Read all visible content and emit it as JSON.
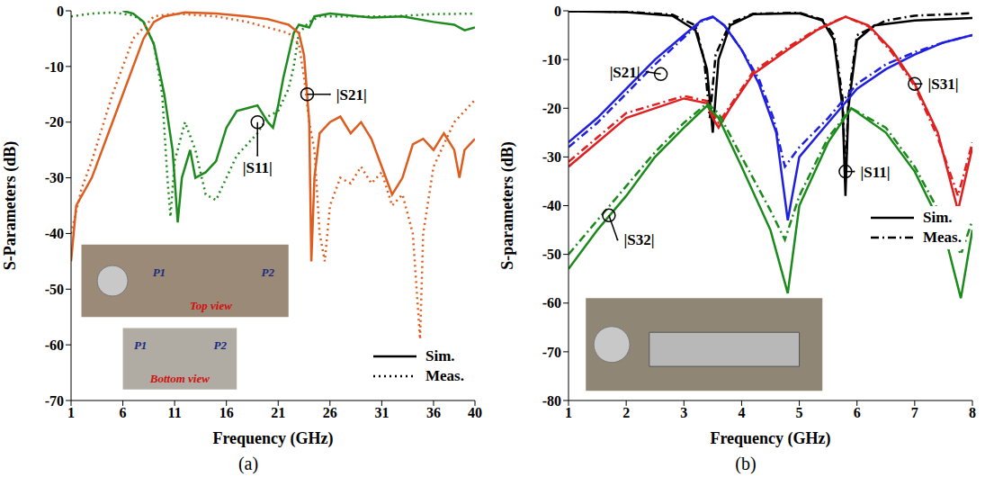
{
  "chart_data": [
    {
      "type": "line",
      "caption": "(a)",
      "x_label": "Frequency (GHz)",
      "y_label": "S-Parameters (dB)",
      "xlim": [
        1,
        40
      ],
      "xticks": [
        1,
        6,
        11,
        16,
        21,
        26,
        31,
        36,
        40
      ],
      "ylim": [
        -70,
        0
      ],
      "yticks": [
        -70,
        -60,
        -50,
        -40,
        -30,
        -20,
        -10,
        0
      ],
      "legend": "lower right",
      "style_legend": [
        {
          "label": "Sim.",
          "line_style": "solid"
        },
        {
          "label": "Meas.",
          "line_style": "dotted"
        }
      ],
      "photo_labels": {
        "top": [
          "P1",
          "Top view",
          "P2"
        ],
        "bottom": [
          "P1",
          "Bottom view",
          "P2"
        ]
      },
      "series": [
        {
          "name": "|S11|",
          "color": "#1e8a1e",
          "line_style": "solid",
          "x": [
            6,
            7,
            8,
            9,
            10,
            10.8,
            11.3,
            11.7,
            12.5,
            13,
            14,
            15,
            16,
            17,
            18,
            19,
            20,
            20.5,
            21,
            21.5,
            22,
            22.5,
            23,
            24,
            24.5,
            26,
            30,
            33,
            36,
            38,
            39,
            40
          ],
          "values": [
            0,
            -0.5,
            -2,
            -6,
            -15,
            -25,
            -38,
            -30,
            -25,
            -30,
            -29,
            -27,
            -21,
            -18,
            -17.5,
            -17,
            -20,
            -21,
            -17,
            -12,
            -8,
            -4,
            -2.5,
            -3,
            -1,
            -0.5,
            -1.2,
            -1,
            -2,
            -2.5,
            -3.5,
            -3
          ]
        },
        {
          "name": "|S11|",
          "color": "#1e8a1e",
          "line_style": "dotted",
          "x": [
            1,
            3,
            5,
            7,
            8,
            9,
            9.8,
            10.3,
            10.6,
            11,
            12,
            13,
            14,
            15,
            16,
            17,
            18,
            19,
            20,
            21,
            22,
            22.5,
            23,
            23.5,
            24,
            25,
            28,
            32,
            36,
            40
          ],
          "values": [
            -1,
            -0.5,
            -0.3,
            -0.8,
            -2,
            -6,
            -15,
            -30,
            -37,
            -27,
            -20,
            -25,
            -33,
            -34,
            -30,
            -26,
            -24,
            -22,
            -19,
            -18,
            -14,
            -10,
            -4,
            -3,
            -2,
            -1,
            -1,
            -1,
            -0.6,
            -0.5
          ]
        },
        {
          "name": "|S21|",
          "color": "#dd5c1e",
          "line_style": "solid",
          "x": [
            1,
            1.5,
            3,
            5,
            7,
            8,
            9,
            10,
            12,
            15,
            18,
            20,
            21,
            22,
            23,
            23.5,
            24,
            24.2,
            24.5,
            25,
            26,
            27,
            28,
            29,
            30,
            31,
            32,
            33,
            34,
            35,
            36,
            37,
            38,
            38.5,
            39,
            40
          ],
          "values": [
            -45,
            -35,
            -30,
            -20,
            -10,
            -5,
            -2,
            -1,
            -0.3,
            -0.5,
            -1,
            -1.5,
            -2,
            -2.5,
            -4,
            -8,
            -20,
            -45,
            -30,
            -22,
            -20,
            -19,
            -22,
            -20,
            -23,
            -28,
            -33,
            -30,
            -24,
            -23,
            -25,
            -22,
            -25,
            -30,
            -25,
            -23
          ]
        },
        {
          "name": "|S21|",
          "color": "#dd5c1e",
          "line_style": "dotted",
          "x": [
            1,
            2,
            3,
            5,
            7,
            9,
            11,
            15,
            18,
            20,
            22,
            23,
            23.5,
            24,
            24.5,
            25,
            25.5,
            26,
            27,
            28,
            29,
            30,
            31,
            32,
            33,
            34,
            34.7,
            35,
            36,
            37,
            38,
            39,
            40
          ],
          "values": [
            -40,
            -32,
            -27,
            -15,
            -5,
            -1,
            -0.5,
            -1,
            -2,
            -3,
            -4,
            -6,
            -12,
            -20,
            -25,
            -40,
            -45,
            -35,
            -30,
            -31,
            -28,
            -31,
            -29,
            -35,
            -33,
            -40,
            -59,
            -40,
            -28,
            -24,
            -20,
            -18,
            -16
          ]
        }
      ],
      "annotations": [
        {
          "text": "|S11|",
          "x": 19,
          "y": -26,
          "point_x": 19,
          "point_y": -20,
          "side": "bottom"
        },
        {
          "text": "|S21|",
          "x": 26,
          "y": -15,
          "point_x": 23.8,
          "point_y": -15,
          "side": "right"
        }
      ]
    },
    {
      "type": "line",
      "caption": "(b)",
      "x_label": "Frequency (GHz)",
      "y_label": "S-parameters (dB)",
      "xlim": [
        1,
        8
      ],
      "xticks": [
        1,
        2,
        3,
        4,
        5,
        6,
        7,
        8
      ],
      "ylim": [
        -80,
        0
      ],
      "yticks": [
        -80,
        -70,
        -60,
        -50,
        -40,
        -30,
        -20,
        -10,
        0
      ],
      "legend": "right",
      "style_legend": [
        {
          "label": "Sim.",
          "line_style": "solid"
        },
        {
          "label": "Meas.",
          "line_style": "dash-dot"
        }
      ],
      "series": [
        {
          "name": "|S11|",
          "color": "#000000",
          "line_style": "solid",
          "x": [
            1,
            2,
            2.8,
            3.2,
            3.4,
            3.5,
            3.6,
            3.8,
            4.2,
            5,
            5.4,
            5.6,
            5.75,
            5.8,
            5.85,
            6,
            6.3,
            7,
            8
          ],
          "values": [
            -0.1,
            -0.3,
            -1,
            -4,
            -12,
            -25,
            -10,
            -3,
            -0.7,
            -0.5,
            -2,
            -6,
            -20,
            -38,
            -20,
            -6,
            -3,
            -2,
            -1.5
          ]
        },
        {
          "name": "|S11|",
          "color": "#000000",
          "line_style": "dash-dot",
          "x": [
            1,
            2,
            2.8,
            3.2,
            3.35,
            3.45,
            3.55,
            3.8,
            4.2,
            5,
            5.4,
            5.6,
            5.75,
            5.8,
            5.85,
            6,
            6.5,
            7,
            8
          ],
          "values": [
            -0.1,
            -0.2,
            -0.8,
            -3,
            -10,
            -22,
            -9,
            -2.5,
            -0.6,
            -0.4,
            -1.8,
            -5,
            -18,
            -35,
            -18,
            -5,
            -2,
            -1,
            -0.5
          ]
        },
        {
          "name": "|S21|",
          "color": "#1f1fe0",
          "line_style": "solid",
          "x": [
            1,
            1.5,
            2,
            2.5,
            3,
            3.3,
            3.5,
            3.7,
            4,
            4.3,
            4.6,
            4.8,
            5,
            5.5,
            6,
            6.5,
            7,
            7.5,
            8
          ],
          "values": [
            -27,
            -22,
            -16,
            -10,
            -5,
            -2,
            -1.2,
            -3,
            -8,
            -15,
            -25,
            -43,
            -30,
            -23,
            -16,
            -12,
            -9,
            -6.5,
            -5
          ]
        },
        {
          "name": "|S21|",
          "color": "#1f1fe0",
          "line_style": "dash-dot",
          "x": [
            1,
            1.5,
            2,
            2.5,
            3,
            3.3,
            3.5,
            3.7,
            4,
            4.3,
            4.55,
            4.75,
            5,
            5.5,
            6,
            6.5,
            7,
            7.5,
            8
          ],
          "values": [
            -28,
            -23,
            -17,
            -11,
            -5.5,
            -2.2,
            -1.3,
            -3,
            -8,
            -14,
            -22,
            -32,
            -28,
            -22,
            -15,
            -11,
            -8.5,
            -6.5,
            -5
          ]
        },
        {
          "name": "|S31|",
          "color": "#e01f1f",
          "line_style": "solid",
          "x": [
            1,
            2,
            3,
            3.4,
            3.5,
            3.6,
            3.8,
            4.2,
            4.8,
            5.3,
            5.8,
            6.2,
            6.6,
            7,
            7.4,
            7.75,
            8
          ],
          "values": [
            -32,
            -22,
            -18,
            -19,
            -22,
            -24,
            -20,
            -13,
            -8,
            -4,
            -1.2,
            -3,
            -8,
            -15,
            -25,
            -41,
            -28
          ]
        },
        {
          "name": "|S31|",
          "color": "#e01f1f",
          "line_style": "dash-dot",
          "x": [
            1,
            2,
            3,
            3.4,
            3.5,
            3.6,
            3.8,
            4.2,
            4.8,
            5.3,
            5.8,
            6.2,
            6.6,
            7,
            7.4,
            7.75,
            8
          ],
          "values": [
            -31,
            -21,
            -17.5,
            -18.5,
            -21,
            -23,
            -19.5,
            -12.5,
            -7.5,
            -3.8,
            -1.2,
            -3.2,
            -8.5,
            -15.5,
            -26,
            -38,
            -27
          ]
        },
        {
          "name": "|S32|",
          "color": "#1a8a1a",
          "line_style": "solid",
          "x": [
            1,
            1.5,
            2,
            2.5,
            3,
            3.4,
            3.6,
            4,
            4.5,
            4.8,
            5,
            5.5,
            5.9,
            6.5,
            7,
            7.5,
            7.8,
            8
          ],
          "values": [
            -53,
            -45,
            -38,
            -30,
            -24,
            -19.5,
            -22,
            -32,
            -45,
            -58,
            -40,
            -27,
            -20,
            -25,
            -33,
            -45,
            -59,
            -45
          ]
        },
        {
          "name": "|S32|",
          "color": "#1a8a1a",
          "line_style": "dash-dot",
          "x": [
            1,
            1.5,
            2,
            2.5,
            3,
            3.4,
            3.6,
            4,
            4.5,
            4.75,
            5,
            5.5,
            5.9,
            6.5,
            7,
            7.5,
            7.8,
            8
          ],
          "values": [
            -50,
            -43,
            -36,
            -29,
            -23,
            -19,
            -21,
            -30,
            -41,
            -47,
            -38,
            -26,
            -20,
            -24,
            -32,
            -43,
            -50,
            -43
          ]
        }
      ],
      "annotations": [
        {
          "text": "|S21|",
          "x": 2.35,
          "y": -12.5,
          "point_x": 2.6,
          "point_y": -13,
          "side": "left"
        },
        {
          "text": "|S31|",
          "x": 7.12,
          "y": -15,
          "point_x": 7.0,
          "point_y": -15,
          "side": "right"
        },
        {
          "text": "|S11|",
          "x": 5.95,
          "y": -33,
          "point_x": 5.8,
          "point_y": -33,
          "side": "right"
        },
        {
          "text": "|S32|",
          "x": 1.85,
          "y": -47,
          "point_x": 1.7,
          "point_y": -42,
          "side": "right"
        }
      ]
    }
  ]
}
